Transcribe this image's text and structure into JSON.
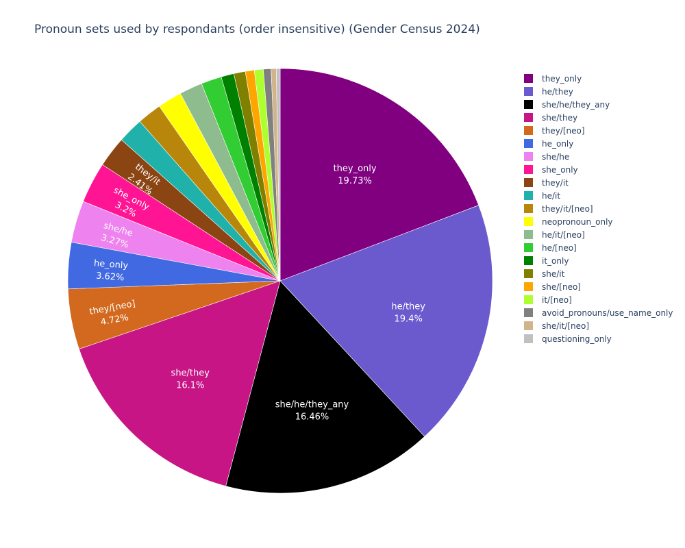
{
  "chart_data": {
    "type": "pie",
    "title": "Pronoun sets used by respondants (order insensitive) (Gender Census 2024)",
    "legend_position": "right",
    "slices": [
      {
        "label": "they_only",
        "percent": 19.73,
        "color": "#800080",
        "text_label": "they_only",
        "text_value": "19.73%"
      },
      {
        "label": "he/they",
        "percent": 19.4,
        "color": "#6a5acd",
        "text_label": "he/they",
        "text_value": "19.4%"
      },
      {
        "label": "she/he/they_any",
        "percent": 16.46,
        "color": "#000000",
        "text_label": "she/he/they_any",
        "text_value": "16.46%"
      },
      {
        "label": "she/they",
        "percent": 16.1,
        "color": "#c71585",
        "text_label": "she/they",
        "text_value": "16.1%"
      },
      {
        "label": "they/[neo]",
        "percent": 4.72,
        "color": "#d2691e",
        "text_label": "they/[neo]",
        "text_value": "4.72%"
      },
      {
        "label": "he_only",
        "percent": 3.62,
        "color": "#4169e1",
        "text_label": "he_only",
        "text_value": "3.62%"
      },
      {
        "label": "she/he",
        "percent": 3.27,
        "color": "#ee82ee",
        "text_label": "she/he",
        "text_value": "3.27%"
      },
      {
        "label": "she_only",
        "percent": 3.2,
        "color": "#ff1493",
        "text_label": "she_only",
        "text_value": "3.2%"
      },
      {
        "label": "they/it",
        "percent": 2.41,
        "color": "#8b4513",
        "text_label": "they/it",
        "text_value": "2.41%"
      },
      {
        "label": "he/it",
        "percent": 2.0,
        "color": "#20b2aa"
      },
      {
        "label": "they/it/[neo]",
        "percent": 1.9,
        "color": "#b8860b"
      },
      {
        "label": "neopronoun_only",
        "percent": 1.9,
        "color": "#ffff00"
      },
      {
        "label": "he/it/[neo]",
        "percent": 1.8,
        "color": "#8fbc8f"
      },
      {
        "label": "he/[neo]",
        "percent": 1.6,
        "color": "#32cd32"
      },
      {
        "label": "it_only",
        "percent": 1.0,
        "color": "#008000"
      },
      {
        "label": "she/it",
        "percent": 0.9,
        "color": "#808000"
      },
      {
        "label": "she/[neo]",
        "percent": 0.7,
        "color": "#ffa500"
      },
      {
        "label": "it/[neo]",
        "percent": 0.7,
        "color": "#adff2f"
      },
      {
        "label": "avoid_pronouns/use_name_only",
        "percent": 0.6,
        "color": "#808080"
      },
      {
        "label": "she/it/[neo]",
        "percent": 0.4,
        "color": "#d2b48c"
      },
      {
        "label": "questioning_only",
        "percent": 0.3,
        "color": "#c0c0c0"
      }
    ]
  }
}
